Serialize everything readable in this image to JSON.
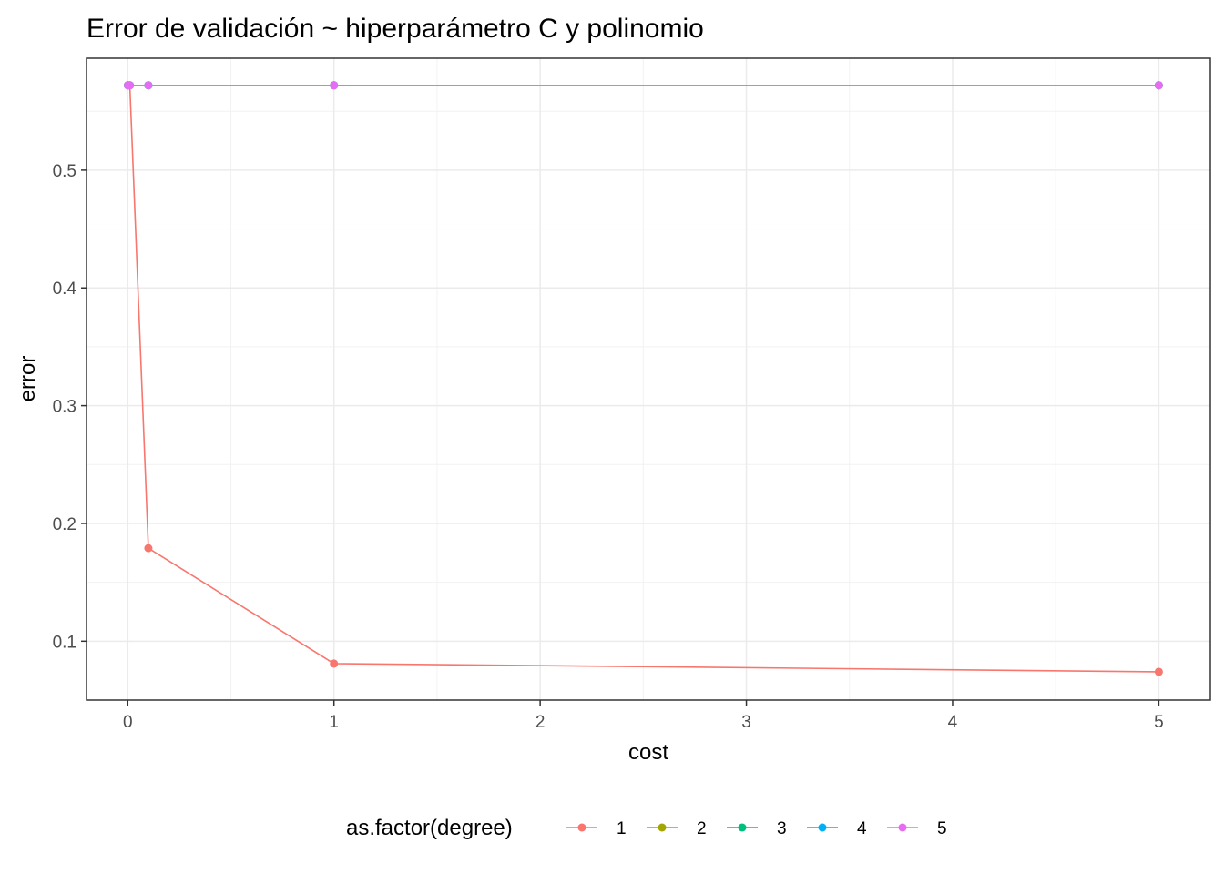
{
  "chart_data": {
    "type": "line",
    "title": "Error de validación ~ hiperparámetro C y polinomio",
    "xlabel": "cost",
    "ylabel": "error",
    "xlim": [
      -0.2,
      5.25
    ],
    "ylim": [
      0.05,
      0.595
    ],
    "xticks": [
      0,
      1,
      2,
      3,
      4,
      5
    ],
    "xtick_labels": [
      "0",
      "1",
      "2",
      "3",
      "4",
      "5"
    ],
    "yticks": [
      0.1,
      0.2,
      0.3,
      0.4,
      0.5
    ],
    "ytick_labels": [
      "0.1",
      "0.2",
      "0.3",
      "0.4",
      "0.5"
    ],
    "grid": true,
    "legend_position": "bottom",
    "legend_title": "as.factor(degree)",
    "series": [
      {
        "name": "1",
        "color": "#F8766D",
        "x": [
          0.001,
          0.01,
          0.1,
          1,
          5
        ],
        "y": [
          0.572,
          0.572,
          0.179,
          0.081,
          0.074
        ]
      },
      {
        "name": "2",
        "color": "#A3A500",
        "x": [
          0.001,
          0.01,
          0.1,
          1,
          5
        ],
        "y": [
          0.572,
          0.572,
          0.572,
          0.572,
          0.572
        ]
      },
      {
        "name": "3",
        "color": "#00BF7D",
        "x": [
          0.001,
          0.01,
          0.1,
          1,
          5
        ],
        "y": [
          0.572,
          0.572,
          0.572,
          0.572,
          0.572
        ]
      },
      {
        "name": "4",
        "color": "#00B0F6",
        "x": [
          0.001,
          0.01,
          0.1,
          1,
          5
        ],
        "y": [
          0.572,
          0.572,
          0.572,
          0.572,
          0.572
        ]
      },
      {
        "name": "5",
        "color": "#E76BF3",
        "x": [
          0.001,
          0.01,
          0.1,
          1,
          5
        ],
        "y": [
          0.572,
          0.572,
          0.572,
          0.572,
          0.572
        ]
      }
    ]
  }
}
